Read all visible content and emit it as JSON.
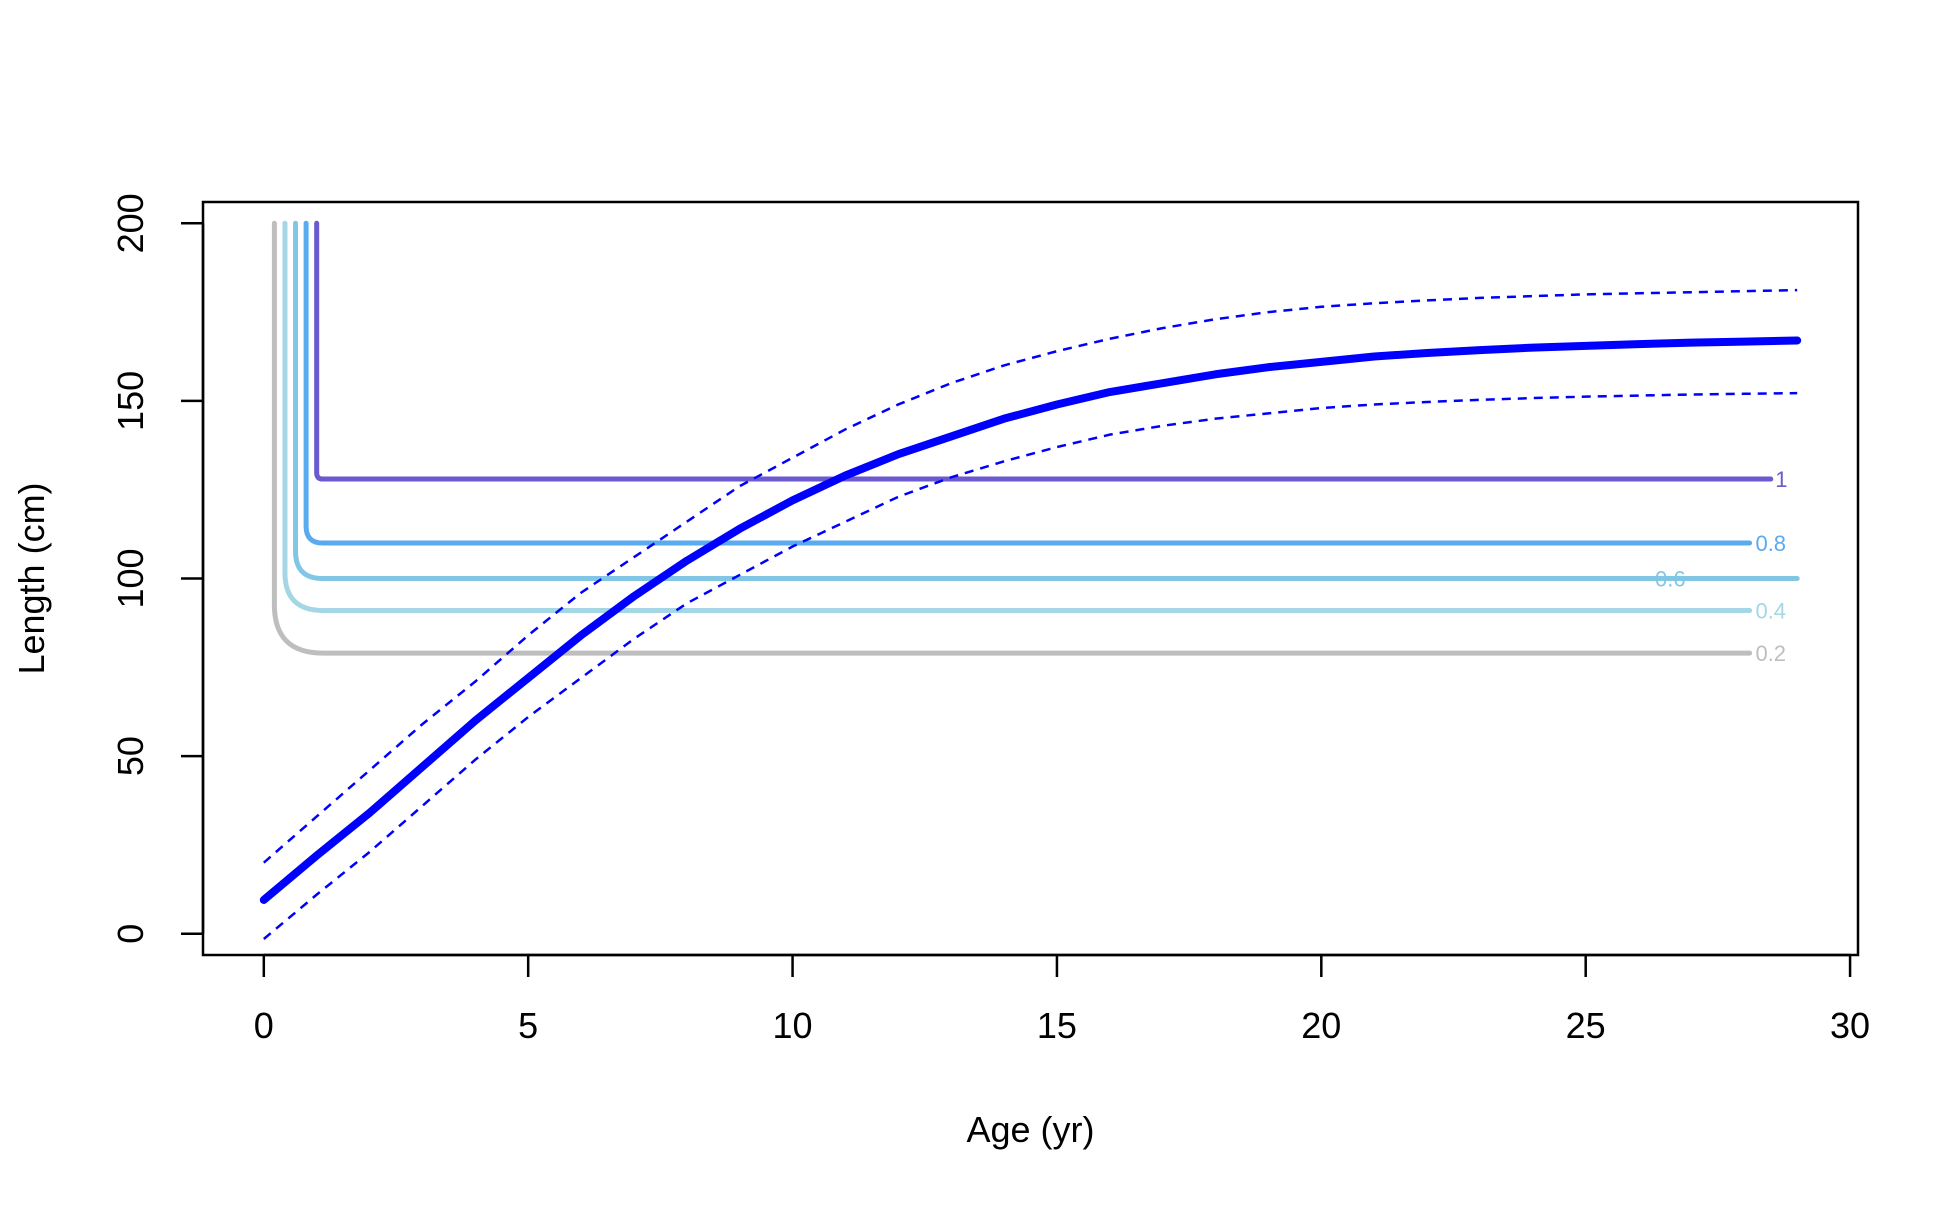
{
  "chart_data": {
    "type": "line",
    "title": "",
    "xlabel": "Age (yr)",
    "ylabel": "Length (cm)",
    "xlim": [
      -1.15,
      30.15
    ],
    "ylim": [
      -6,
      206
    ],
    "x_ticks": [
      0,
      5,
      10,
      15,
      20,
      25,
      30
    ],
    "y_ticks": [
      0,
      50,
      100,
      150,
      200
    ],
    "grid": false,
    "legend": "none",
    "growth_curve": {
      "color": "#0000ff",
      "mean": {
        "x": [
          0,
          1,
          2,
          3,
          4,
          5,
          6,
          7,
          8,
          9,
          10,
          11,
          12,
          13,
          14,
          15,
          16,
          17,
          18,
          19,
          20,
          21,
          22,
          23,
          24,
          25,
          26,
          27,
          28,
          29
        ],
        "y": [
          9.5,
          22,
          34,
          47,
          60,
          72,
          84,
          95,
          105,
          114,
          122,
          129,
          135,
          140,
          145,
          149,
          152.5,
          155,
          157.5,
          159.5,
          161,
          162.5,
          163.5,
          164.3,
          165,
          165.5,
          166,
          166.4,
          166.7,
          167
        ]
      },
      "upper": {
        "x": [
          0,
          1,
          2,
          3,
          4,
          5,
          6,
          7,
          8,
          9,
          10,
          11,
          12,
          13,
          14,
          15,
          16,
          17,
          18,
          19,
          20,
          21,
          22,
          23,
          24,
          25,
          26,
          27,
          28,
          29
        ],
        "y": [
          20,
          33,
          46,
          59,
          71,
          84,
          96,
          106,
          116,
          126,
          134,
          142,
          149,
          155,
          160,
          164,
          167.5,
          170.5,
          173,
          175,
          176.5,
          177.5,
          178.3,
          179,
          179.5,
          180,
          180.3,
          180.6,
          180.9,
          181.2
        ]
      },
      "lower": {
        "x": [
          0,
          1,
          2,
          3,
          4,
          5,
          6,
          7,
          8,
          9,
          10,
          11,
          12,
          13,
          14,
          15,
          16,
          17,
          18,
          19,
          20,
          21,
          22,
          23,
          24,
          25,
          26,
          27,
          28,
          29
        ],
        "y": [
          -1.5,
          11,
          23,
          36,
          49,
          61,
          72,
          83,
          93,
          101,
          109,
          116,
          123,
          128.5,
          133,
          137,
          140.5,
          143,
          145,
          146.5,
          148,
          149,
          149.7,
          150.3,
          150.8,
          151.2,
          151.5,
          151.8,
          152,
          152.2
        ]
      }
    },
    "contours": [
      {
        "name": "0.2",
        "color": "#bebebe",
        "x_start": 0.2,
        "x_end": 28.1,
        "level_y": 79,
        "label": "0.2",
        "label_x": 28.5
      },
      {
        "name": "0.4",
        "color": "#a5d6e5",
        "x_start": 0.4,
        "x_end": 28.1,
        "level_y": 91,
        "label": "0.4",
        "label_x": 28.5
      },
      {
        "name": "0.6",
        "color": "#82c6e6",
        "x_start": 0.6,
        "x_end": 29.0,
        "level_y": 100,
        "label": "0.6",
        "label_x": 26.6
      },
      {
        "name": "0.8",
        "color": "#5aaaf0",
        "x_start": 0.8,
        "x_end": 28.1,
        "level_y": 110,
        "label": "0.8",
        "label_x": 28.5
      },
      {
        "name": "1",
        "color": "#6a5acd",
        "x_start": 1.0,
        "x_end": 28.5,
        "level_y": 128,
        "label": "1",
        "label_x": 28.7
      }
    ]
  }
}
